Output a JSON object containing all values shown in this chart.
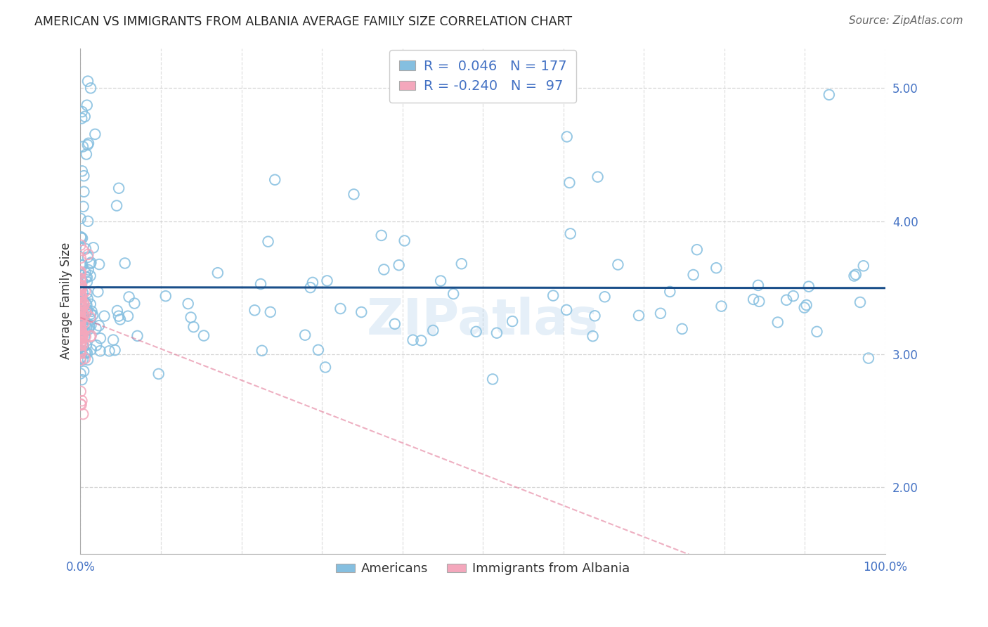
{
  "title": "AMERICAN VS IMMIGRANTS FROM ALBANIA AVERAGE FAMILY SIZE CORRELATION CHART",
  "source": "Source: ZipAtlas.com",
  "ylabel": "Average Family Size",
  "xlim": [
    0.0,
    1.0
  ],
  "ylim": [
    1.5,
    5.3
  ],
  "yticks": [
    2.0,
    3.0,
    4.0,
    5.0
  ],
  "xticks": [
    0.0,
    0.1,
    0.2,
    0.3,
    0.4,
    0.5,
    0.6,
    0.7,
    0.8,
    0.9,
    1.0
  ],
  "xtick_labels": [
    "0.0%",
    "",
    "",
    "",
    "",
    "",
    "",
    "",
    "",
    "",
    "100.0%"
  ],
  "blue_color": "#85bfe0",
  "pink_color": "#f4a7bc",
  "blue_line_color": "#1a4f8a",
  "pink_line_color": "#e07090",
  "R_blue": 0.046,
  "N_blue": 177,
  "R_pink": -0.24,
  "N_pink": 97,
  "legend_label_blue": "Americans",
  "legend_label_pink": "Immigrants from Albania",
  "watermark": "ZIPatlas",
  "title_color": "#222222",
  "source_color": "#666666",
  "axis_tick_color": "#4472c4",
  "background_color": "#ffffff",
  "grid_color": "#cccccc",
  "ylabel_color": "#333333"
}
